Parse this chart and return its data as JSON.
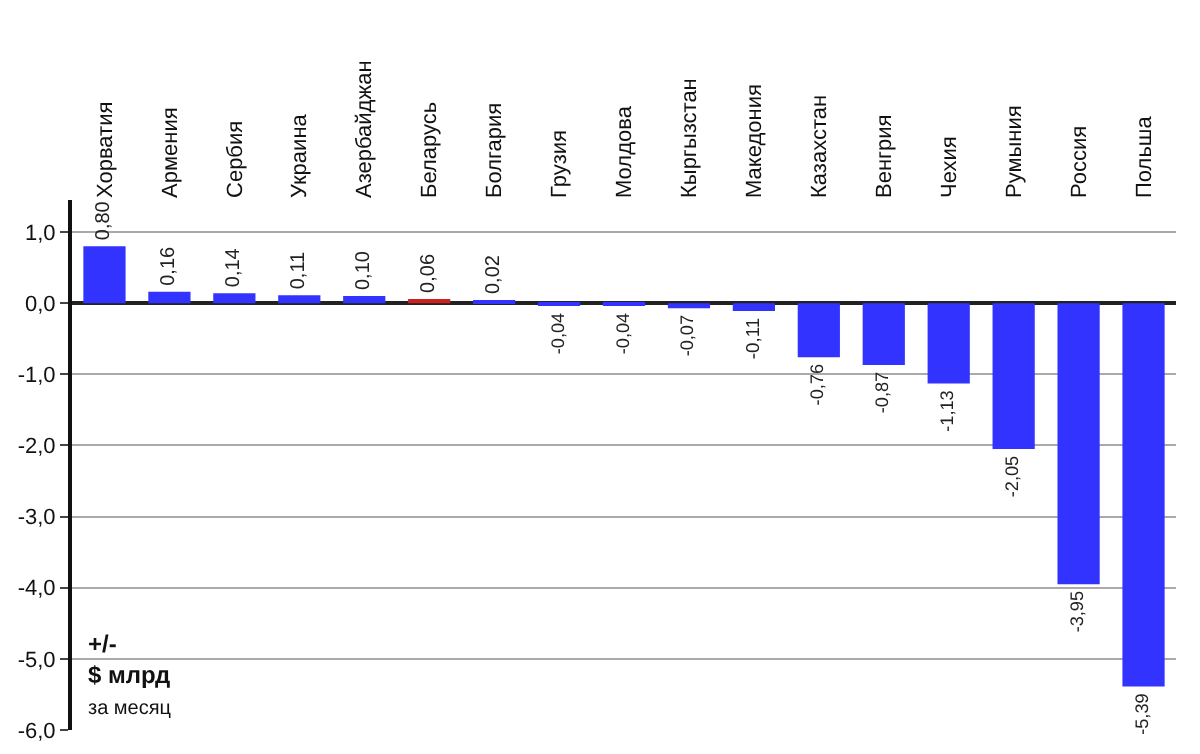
{
  "chart_data": {
    "type": "bar",
    "ylabel": "+/-\n$ млрд\nза месяц",
    "categories": [
      "Хорватия",
      "Армения",
      "Сербия",
      "Украина",
      "Азербайджан",
      "Беларусь",
      "Болгария",
      "Грузия",
      "Молдова",
      "Кыргызстан",
      "Македония",
      "Казахстан",
      "Венгрия",
      "Чехия",
      "Румыния",
      "Россия",
      "Польша"
    ],
    "values": [
      0.8,
      0.16,
      0.14,
      0.11,
      0.1,
      0.06,
      0.02,
      -0.04,
      -0.04,
      -0.07,
      -0.11,
      -0.76,
      -0.87,
      -1.13,
      -2.05,
      -3.95,
      -5.39
    ],
    "value_labels": [
      "0,80",
      "0,16",
      "0,14",
      "0,11",
      "0,10",
      "0,06",
      "0,02",
      "-0,04",
      "-0,04",
      "-0,07",
      "-0,11",
      "-0,76",
      "-0,87",
      "-1,13",
      "-2,05",
      "-3,95",
      "-5,39"
    ],
    "colors": [
      "#3333ff",
      "#3333ff",
      "#3333ff",
      "#3333ff",
      "#3333ff",
      "#cc2222",
      "#3333ff",
      "#3333ff",
      "#3333ff",
      "#3333ff",
      "#3333ff",
      "#3333ff",
      "#3333ff",
      "#3333ff",
      "#3333ff",
      "#3333ff",
      "#3333ff"
    ],
    "ylim": [
      -6,
      1.45
    ],
    "yticks": [
      {
        "value": 1,
        "label": "1,0"
      },
      {
        "value": 0,
        "label": "0,0"
      },
      {
        "value": -1,
        "label": "-1,0"
      },
      {
        "value": -2,
        "label": "-2,0"
      },
      {
        "value": -3,
        "label": "-3,0"
      },
      {
        "value": -4,
        "label": "-4,0"
      },
      {
        "value": -5,
        "label": "-5,0"
      },
      {
        "value": -6,
        "label": "-6,0"
      }
    ],
    "grid": "y"
  }
}
